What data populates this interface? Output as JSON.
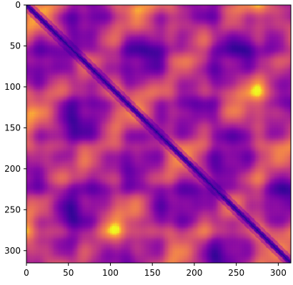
{
  "chart_data": {
    "type": "heatmap",
    "title": "",
    "xlabel": "",
    "ylabel": "",
    "colormap": "plasma",
    "matrix_size": [
      315,
      315
    ],
    "xlim": [
      0,
      315
    ],
    "ylim": [
      315,
      0
    ],
    "x_ticks": [
      0,
      50,
      100,
      150,
      200,
      250,
      300
    ],
    "y_ticks": [
      0,
      50,
      100,
      150,
      200,
      250,
      300
    ],
    "x_tick_labels": [
      "0",
      "50",
      "100",
      "150",
      "200",
      "250",
      "300"
    ],
    "y_tick_labels": [
      "0",
      "50",
      "100",
      "150",
      "200",
      "250",
      "300"
    ],
    "grid": false,
    "diagonal_minimum": true,
    "pattern": "symmetric distance-like matrix with dark diagonal and blocky warm bands",
    "value_range": [
      0,
      1
    ]
  }
}
